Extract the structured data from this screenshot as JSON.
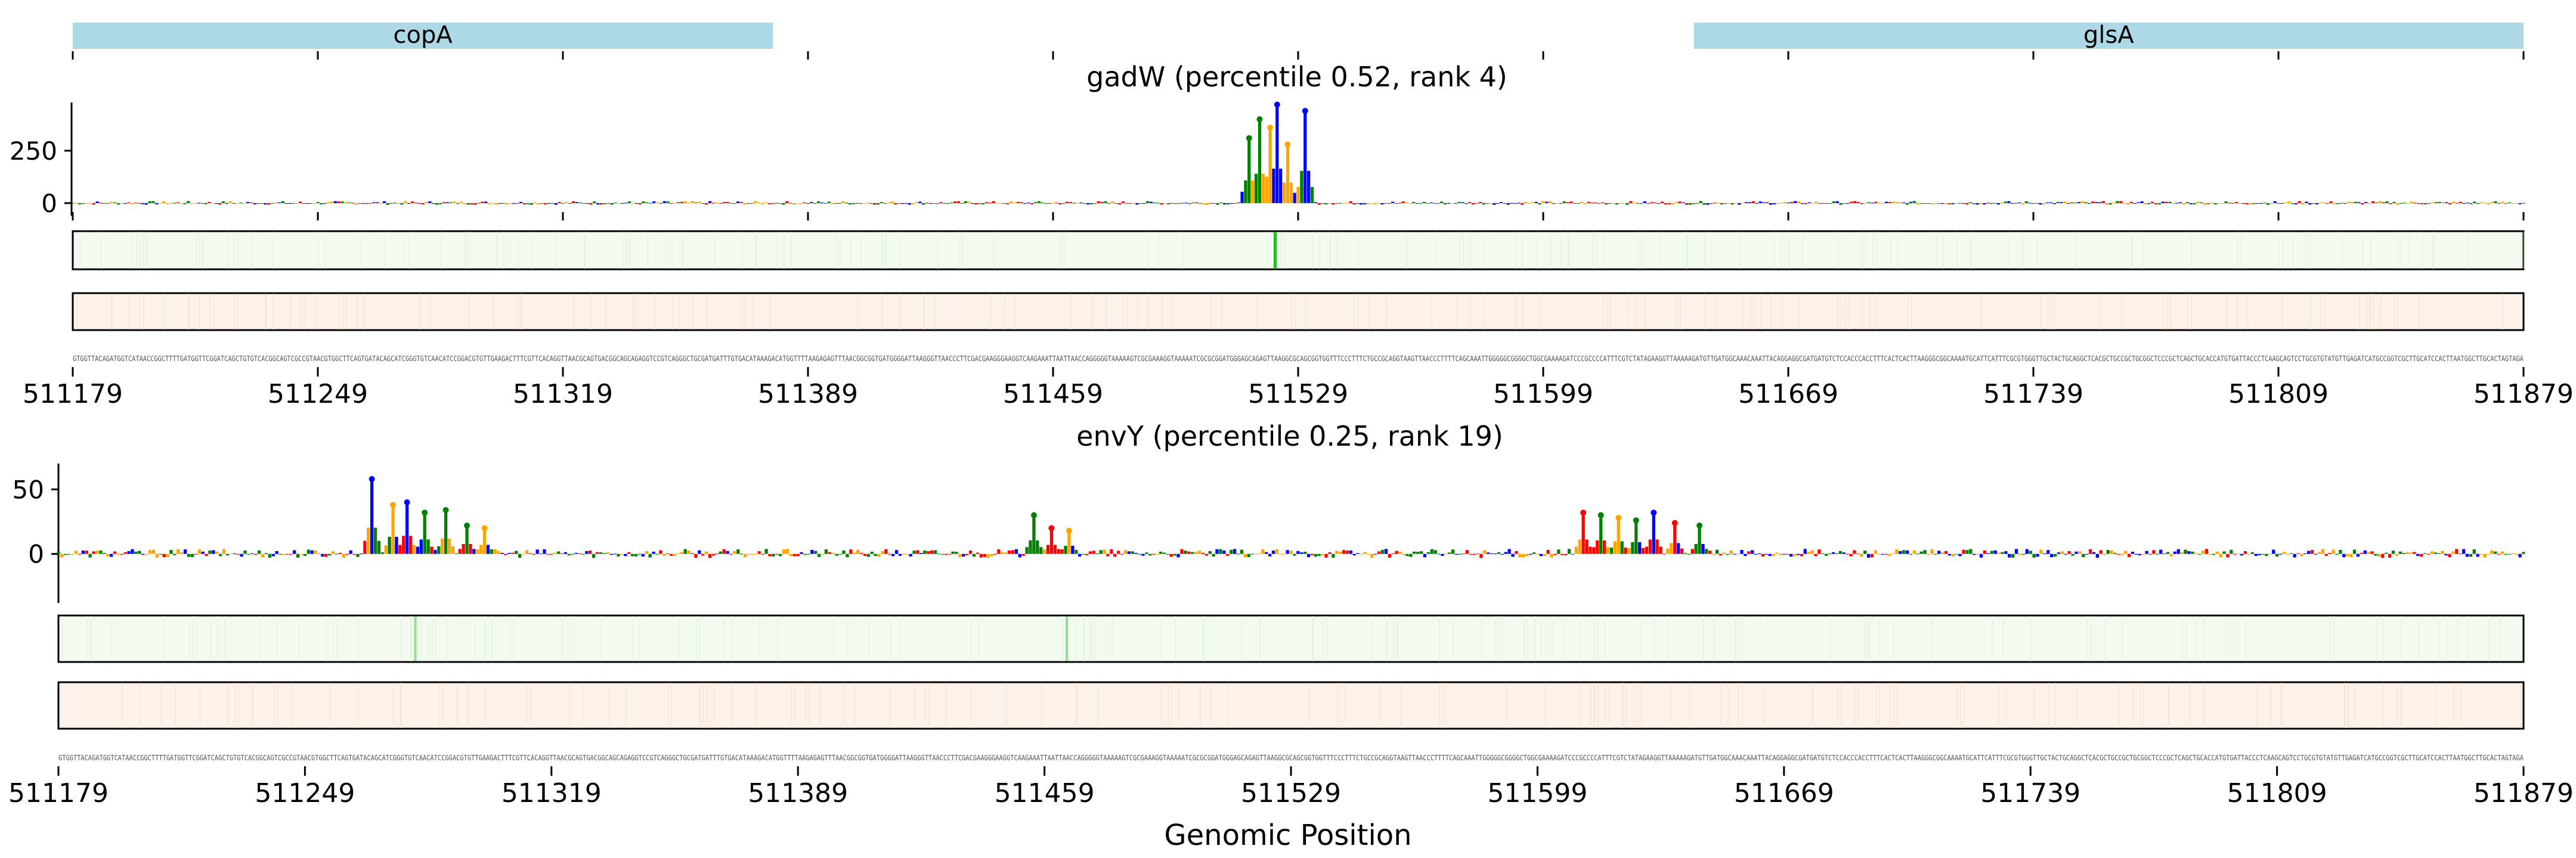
{
  "chart_data": {
    "type": "sequence-logo-tracks",
    "xlabel": "Genomic Position",
    "x_range": [
      511179,
      511879
    ],
    "x_ticks": [
      "511179",
      "511249",
      "511319",
      "511389",
      "511459",
      "511529",
      "511599",
      "511669",
      "511739",
      "511809",
      "511879"
    ],
    "genes": [
      {
        "name": "copA",
        "start": 511179,
        "end": 511379,
        "color": "#add8e6"
      },
      {
        "name": "glsA",
        "start": 511642,
        "end": 511879,
        "color": "#add8e6"
      }
    ],
    "sequence": "GTGGTTACAGATGGTCATAACCGGCTTTTGATGGTTCGGATCAGCTGTGTCACGGCAGTCGCCGTAACGTGGCTTCAGTGATACAGCATCGGGTGTCAACATCCGGACGTGTTGAAGACTTTCGTTCACAGGTTAACGCAGTGACGGCAGCAGAGGTCCGTCAGGGCTGCGATGATTTGTGACATAAAGACATGGTTTTAAGAGAGTTTAACGGCGGTGATGGGGATTAAGGGTTAACCCTTCGACGAAGGGAAGGTCAAGAAATTAATTAACCAGGGGGTAAAAAGTCGCGAAAGGTAAAAATCGCGCGGATGGGAGCAGAGTTAAGGCGCAGCGGTGGTTTCCCTTTCTGCCGCAGGTAAGTTAACCCTTTTCAGCAAATTGGGGGCGGGGCTGGCGAAAAGATCCCGCCCCATTTCGTCTATAGAAGGTTAAAAAGATGTTGATGGCAAACAAATTACAGGAGGCGATGATGTCTCCACCCACCTTTCACTCACTTAAGGGCGGCAAAATGCATTCATTTCGCGTGGGTTGCTACTGCAGGCTCACGCTGCCGCTGCGGCTCCCGCTCAGCTGCACCATGTGATTACCCTCAAGCAGTCCTGCGTGTATGTTGAGATCATGCCGGTCGCTTGCATCCACTTAATGGCTTGCACTAGTAGA",
    "tracks": [
      {
        "title": "gadW (percentile 0.52, rank 4)",
        "y_ticks": [
          "250",
          "0"
        ],
        "ylim": [
          -60,
          480
        ],
        "peak_positions": [
          511515,
          511518,
          511521,
          511523,
          511526,
          511531
        ],
        "peak_values": [
          310,
          400,
          360,
          470,
          280,
          440
        ],
        "noise_amplitude": 18,
        "heatmap_hotspots": [
          511522
        ]
      },
      {
        "title": "envY (percentile 0.25, rank 19)",
        "y_ticks": [
          "50",
          "0"
        ],
        "ylim": [
          -38,
          70
        ],
        "peak_positions": [
          511268,
          511274,
          511278,
          511283,
          511289,
          511295,
          511300,
          511456,
          511461,
          511466,
          511612,
          511617,
          511622,
          511627,
          511632,
          511638,
          511645
        ],
        "peak_values": [
          58,
          38,
          40,
          32,
          34,
          22,
          20,
          30,
          20,
          18,
          32,
          30,
          28,
          26,
          32,
          24,
          22
        ],
        "noise_amplitude": 7,
        "heatmap_hotspots": [
          511280,
          511465
        ]
      }
    ],
    "nucleotide_colors": {
      "A": "#ff0000",
      "C": "#0000ff",
      "G": "#008000",
      "T": "#ffa500"
    },
    "heatmap_colors": {
      "upper": "#f3fbf0",
      "upper_hot": "#22bb22",
      "lower": "#fdf3ea"
    }
  }
}
